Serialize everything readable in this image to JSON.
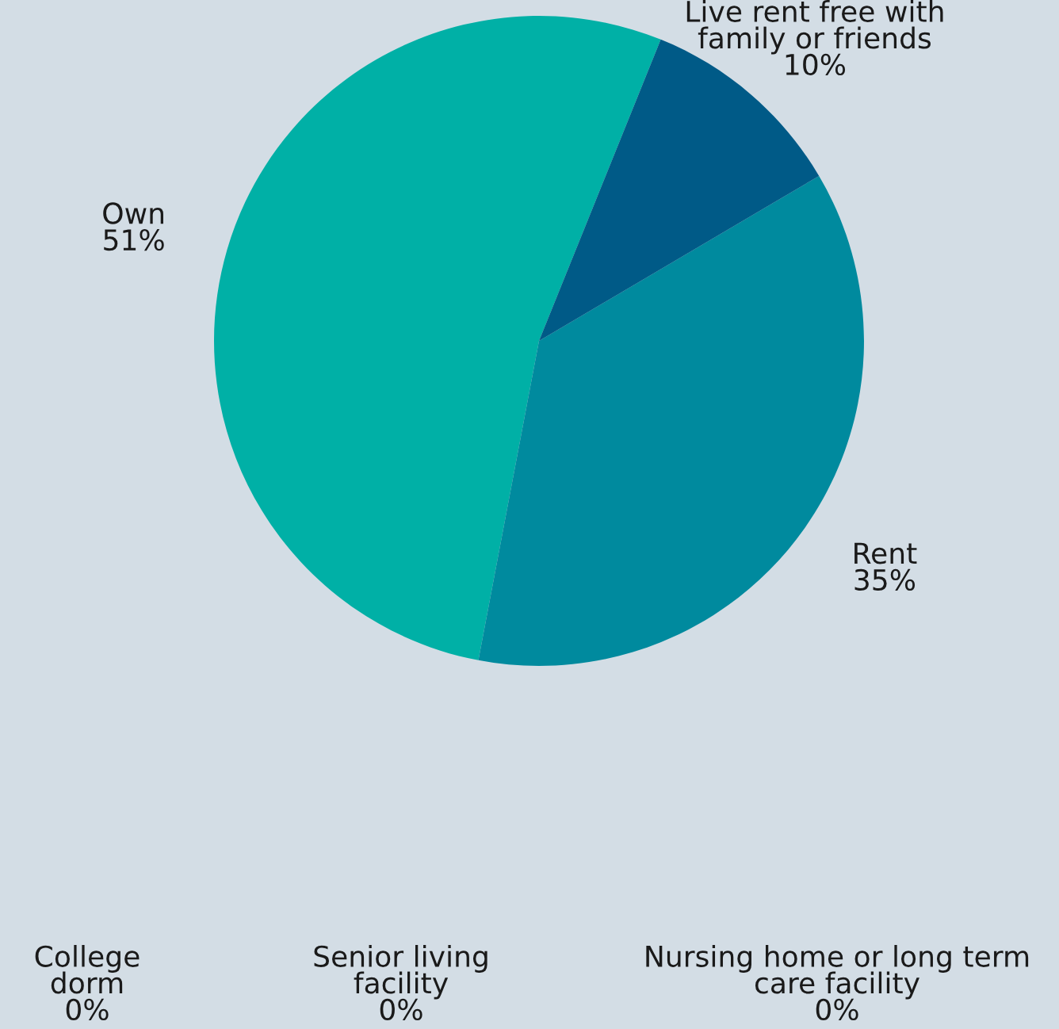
{
  "chart_data": {
    "type": "pie",
    "categories": [
      "Own",
      "Rent",
      "Live rent free with family or friends",
      "College dorm",
      "Senior living facility",
      "Nursing home or long term care facility"
    ],
    "values": [
      51,
      35,
      10,
      0,
      0,
      0
    ],
    "value_labels": [
      "51%",
      "35%",
      "10%",
      "0%",
      "0%",
      "0%"
    ],
    "colors": [
      "#00b0a6",
      "#008a9e",
      "#005a87",
      "#00b0a6",
      "#008a9e",
      "#005a87"
    ],
    "legend": false
  }
}
